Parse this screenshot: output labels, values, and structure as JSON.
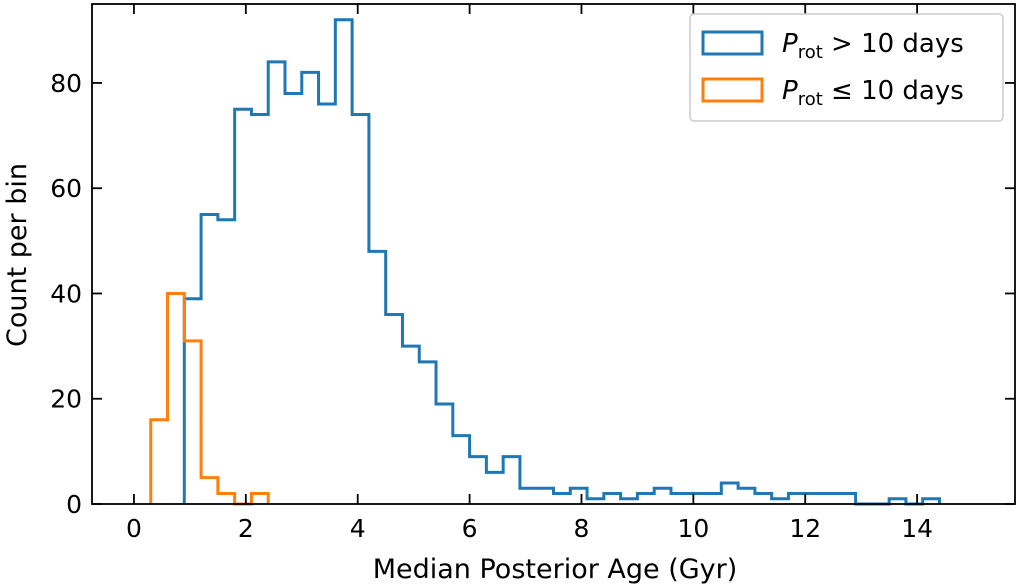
{
  "chart_data": {
    "type": "histogram",
    "xlabel": "Median Posterior Age (Gyr)",
    "ylabel": "Count per bin",
    "xlim": [
      -0.75,
      15.75
    ],
    "ylim": [
      0,
      95
    ],
    "xticks": [
      0,
      2,
      4,
      6,
      8,
      10,
      12,
      14
    ],
    "yticks": [
      0,
      20,
      40,
      60,
      80
    ],
    "grid": false,
    "legend_position": "top-right",
    "series": [
      {
        "legend_symbol": "P",
        "legend_subscript": "rot",
        "legend_rest": " > 10 days",
        "color": "#1f77b4",
        "bin_edges": [
          0.9,
          1.2,
          1.5,
          1.8,
          2.1,
          2.4,
          2.7,
          3.0,
          3.3,
          3.6,
          3.9,
          4.2,
          4.5,
          4.8,
          5.1,
          5.4,
          5.7,
          6.0,
          6.3,
          6.6,
          6.9,
          7.2,
          7.5,
          7.8,
          8.1,
          8.4,
          8.7,
          9.0,
          9.3,
          9.6,
          9.9,
          10.2,
          10.5,
          10.8,
          11.1,
          11.4,
          11.7,
          12.0,
          12.3,
          12.6,
          12.9,
          13.2,
          13.5,
          13.8,
          14.1,
          14.4
        ],
        "counts": [
          39,
          55,
          54,
          75,
          74,
          84,
          78,
          82,
          76,
          92,
          74,
          48,
          36,
          30,
          27,
          19,
          13,
          9,
          6,
          9,
          3,
          3,
          2,
          3,
          1,
          2,
          1,
          2,
          3,
          2,
          2,
          2,
          4,
          3,
          2,
          1,
          2,
          2,
          2,
          2,
          0,
          0,
          1,
          0,
          1
        ]
      },
      {
        "legend_symbol": "P",
        "legend_subscript": "rot",
        "legend_rest": " ≤ 10 days",
        "color": "#ff7f0e",
        "bin_edges": [
          0.3,
          0.6,
          0.9,
          1.2,
          1.5,
          1.8,
          2.1,
          2.4
        ],
        "counts": [
          16,
          40,
          31,
          5,
          2,
          0,
          2
        ]
      }
    ]
  }
}
